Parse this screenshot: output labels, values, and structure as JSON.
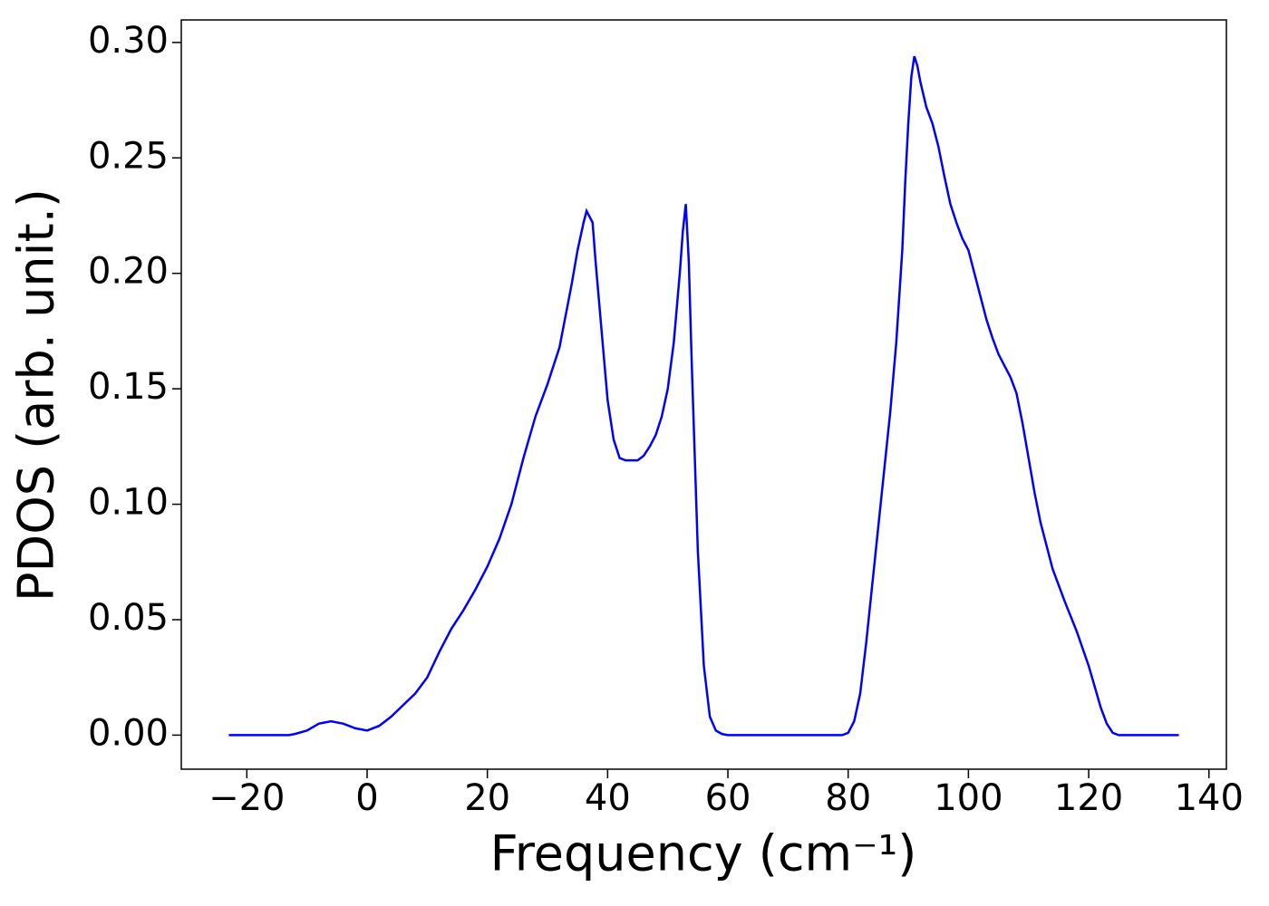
{
  "chart_data": {
    "type": "line",
    "xlabel": "Frequency (cm⁻¹)",
    "ylabel": "PDOS (arb. unit.)",
    "xlim": [
      -30.9,
      142.9
    ],
    "ylim": [
      -0.01475,
      0.30975
    ],
    "xticks": [
      {
        "value": -20,
        "label": "−20"
      },
      0,
      20,
      40,
      60,
      80,
      100,
      120,
      140
    ],
    "yticks": [
      {
        "value": 0,
        "label": "0.00"
      },
      {
        "value": 0.05,
        "label": "0.05"
      },
      {
        "value": 0.1,
        "label": "0.10"
      },
      {
        "value": 0.15,
        "label": "0.15"
      },
      {
        "value": 0.2,
        "label": "0.20"
      },
      {
        "value": 0.25,
        "label": "0.25"
      },
      {
        "value": 0.3,
        "label": "0.30"
      }
    ],
    "grid": false,
    "series": [
      {
        "name": "PDOS",
        "color": "#0000ff",
        "x": [
          -23,
          -13,
          -12,
          -10,
          -8,
          -6,
          -4,
          -2,
          0,
          2,
          4,
          6,
          8,
          10,
          12,
          14,
          16,
          18,
          20,
          22,
          24,
          26,
          28,
          30,
          32,
          34,
          35,
          36,
          36.5,
          37.5,
          38,
          39,
          40,
          41,
          42,
          43,
          44,
          45,
          46,
          47,
          48,
          49,
          50,
          51,
          52,
          52.5,
          53,
          53.5,
          54,
          55,
          56,
          57,
          58,
          59,
          60,
          79,
          80,
          81,
          82,
          83,
          84,
          85,
          86,
          87,
          88,
          89,
          89.5,
          90,
          90.5,
          91,
          91.5,
          92,
          93,
          94,
          95,
          96,
          97,
          98,
          99,
          100,
          101,
          102,
          103,
          104,
          105,
          106,
          107,
          108,
          109,
          110,
          111,
          112,
          114,
          116,
          118,
          120,
          122,
          123,
          124,
          125,
          135
        ],
        "values": [
          0,
          0,
          0.0005,
          0.002,
          0.005,
          0.006,
          0.005,
          0.003,
          0.002,
          0.004,
          0.008,
          0.013,
          0.018,
          0.025,
          0.036,
          0.046,
          0.054,
          0.063,
          0.073,
          0.085,
          0.1,
          0.12,
          0.138,
          0.152,
          0.168,
          0.195,
          0.21,
          0.222,
          0.227,
          0.222,
          0.205,
          0.175,
          0.145,
          0.128,
          0.12,
          0.119,
          0.119,
          0.119,
          0.121,
          0.125,
          0.13,
          0.138,
          0.15,
          0.17,
          0.2,
          0.218,
          0.23,
          0.205,
          0.16,
          0.08,
          0.03,
          0.008,
          0.002,
          0.0005,
          0,
          0,
          0.001,
          0.006,
          0.018,
          0.04,
          0.065,
          0.09,
          0.115,
          0.14,
          0.17,
          0.21,
          0.24,
          0.265,
          0.285,
          0.294,
          0.29,
          0.283,
          0.272,
          0.265,
          0.255,
          0.242,
          0.23,
          0.222,
          0.215,
          0.21,
          0.2,
          0.19,
          0.18,
          0.172,
          0.165,
          0.16,
          0.155,
          0.148,
          0.135,
          0.12,
          0.105,
          0.092,
          0.072,
          0.058,
          0.045,
          0.03,
          0.012,
          0.005,
          0.001,
          0,
          0
        ]
      }
    ]
  }
}
